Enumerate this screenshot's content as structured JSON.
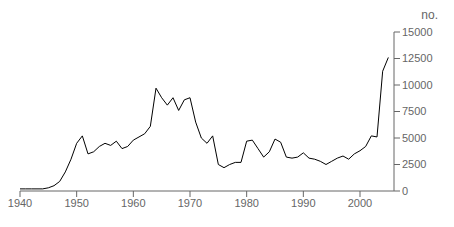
{
  "chart_data": {
    "type": "line",
    "ylabel": "no.",
    "x": [
      1940,
      1941,
      1942,
      1943,
      1944,
      1945,
      1946,
      1947,
      1948,
      1949,
      1950,
      1951,
      1952,
      1953,
      1954,
      1955,
      1956,
      1957,
      1958,
      1959,
      1960,
      1961,
      1962,
      1963,
      1964,
      1965,
      1966,
      1967,
      1968,
      1969,
      1970,
      1971,
      1972,
      1973,
      1974,
      1975,
      1976,
      1977,
      1978,
      1979,
      1980,
      1981,
      1982,
      1983,
      1984,
      1985,
      1986,
      1987,
      1988,
      1989,
      1990,
      1991,
      1992,
      1993,
      1994,
      1995,
      1996,
      1997,
      1998,
      1999,
      2000,
      2001,
      2002,
      2003,
      2004,
      2005
    ],
    "values": [
      200,
      200,
      200,
      200,
      200,
      300,
      500,
      900,
      1800,
      3000,
      4500,
      5200,
      3500,
      3700,
      4200,
      4500,
      4300,
      4700,
      4000,
      4200,
      4800,
      5100,
      5400,
      6100,
      9700,
      8800,
      8100,
      8800,
      7600,
      8600,
      8800,
      6500,
      5000,
      4500,
      5200,
      2500,
      2200,
      2500,
      2700,
      2700,
      4700,
      4800,
      4000,
      3200,
      3700,
      4900,
      4600,
      3200,
      3100,
      3200,
      3600,
      3100,
      3000,
      2800,
      2500,
      2800,
      3100,
      3300,
      3000,
      3500,
      3800,
      4200,
      5200,
      5100,
      11300,
      12600
    ],
    "color": "#000000",
    "xlim": [
      1940,
      2006
    ],
    "xticks": [
      1940,
      1950,
      1960,
      1970,
      1980,
      1990,
      2000
    ],
    "ylim": [
      0,
      15000
    ],
    "yticks": [
      0,
      2500,
      5000,
      7500,
      10000,
      12500,
      15000
    ],
    "grid": false
  }
}
